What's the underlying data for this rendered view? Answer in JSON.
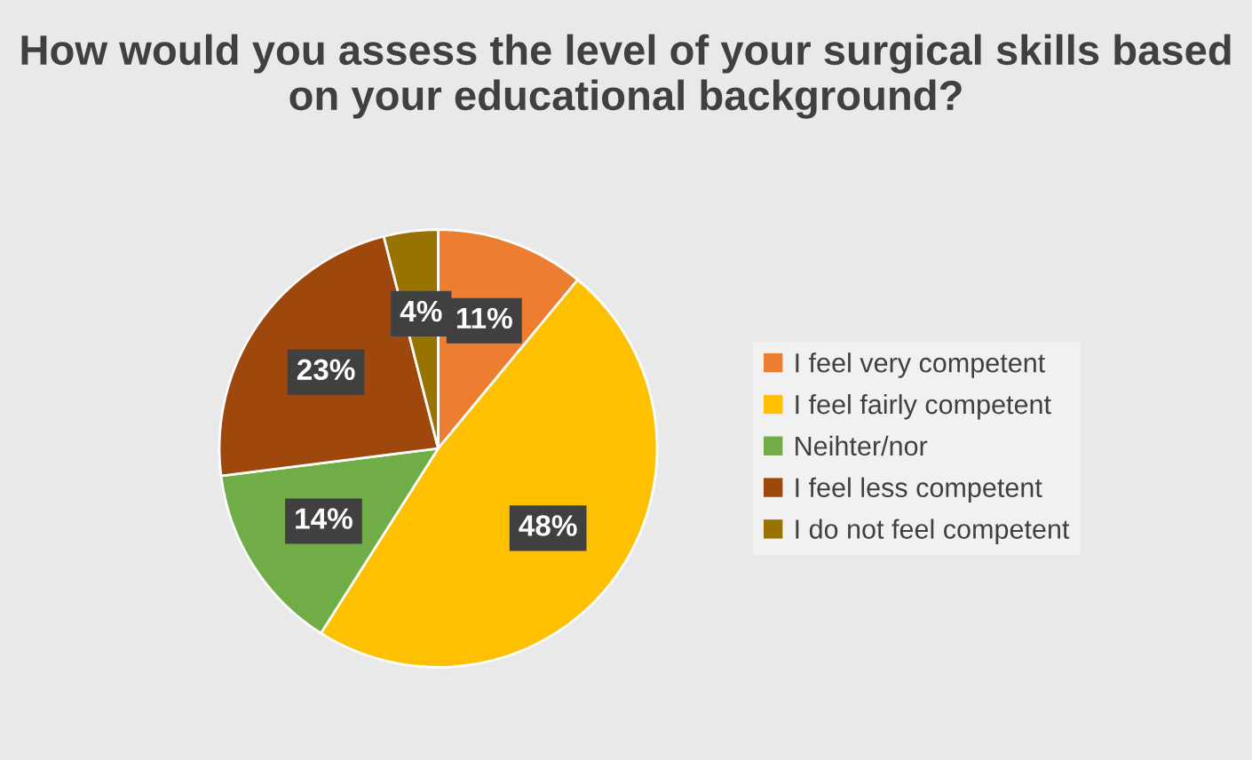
{
  "chart_data": {
    "type": "pie",
    "title": "How would you assess the level of your surgical skills based on your educational background?",
    "categories": [
      "I feel very competent",
      "I feel fairly competent",
      "Neihter/nor",
      "I feel less competent",
      "I do not feel competent"
    ],
    "values": [
      11,
      48,
      14,
      23,
      4
    ],
    "colors": [
      "#ed7d31",
      "#ffc000",
      "#70ad47",
      "#9e480e",
      "#997300"
    ],
    "value_labels": [
      "11%",
      "48%",
      "14%",
      "23%",
      "4%"
    ],
    "legend": "right"
  }
}
